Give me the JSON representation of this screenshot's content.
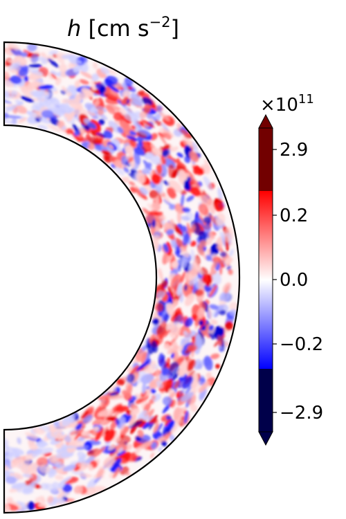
{
  "chart_data": {
    "type": "heatmap",
    "title_var": "h",
    "title_units": " [cm s",
    "title_exp": "−2",
    "title_close": "]",
    "colorbar": {
      "multiplier_base": "×10",
      "multiplier_exp": "11",
      "ticks": [
        {
          "label": "2.9",
          "value": 2.9
        },
        {
          "label": "0.2",
          "value": 0.2
        },
        {
          "label": "0.0",
          "value": 0.0
        },
        {
          "label": "−0.2",
          "value": -0.2
        },
        {
          "label": "−2.9",
          "value": -2.9
        }
      ],
      "cmap": "seismic",
      "extend": "both",
      "colors": {
        "dark_red": "#720000",
        "red": "#ff0000",
        "white": "#ffffff",
        "blue": "#0000ff",
        "dark_blue": "#00004a"
      }
    },
    "domain": "meridional half-annulus (spherical shell slice)",
    "grid": false
  }
}
